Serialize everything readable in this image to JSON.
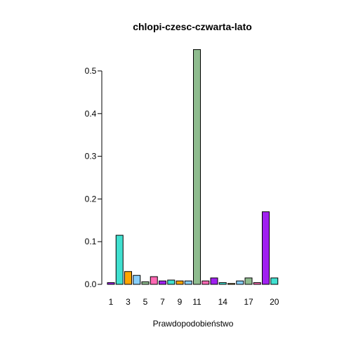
{
  "chart_data": {
    "type": "bar",
    "title": "chlopi-czesc-czwarta-lato",
    "xlabel": "Prawdopodobieństwo",
    "ylabel": "",
    "ylim": [
      0,
      0.55
    ],
    "yticks": [
      "0.0",
      "0.1",
      "0.2",
      "0.3",
      "0.4",
      "0.5"
    ],
    "ytick_values": [
      0,
      0.1,
      0.2,
      0.3,
      0.4,
      0.5
    ],
    "categories": [
      "1",
      "2",
      "3",
      "4",
      "5",
      "6",
      "7",
      "8",
      "9",
      "10",
      "11",
      "12",
      "13",
      "14",
      "15",
      "16",
      "17",
      "18",
      "19",
      "20"
    ],
    "xtick_labels": [
      "1",
      "",
      "3",
      "",
      "5",
      "",
      "7",
      "",
      "9",
      "",
      "11",
      "",
      "",
      "14",
      "",
      "",
      "17",
      "",
      "",
      "20"
    ],
    "values": [
      0.004,
      0.115,
      0.03,
      0.021,
      0.006,
      0.018,
      0.008,
      0.01,
      0.008,
      0.008,
      0.55,
      0.008,
      0.015,
      0.004,
      0.002,
      0.008,
      0.015,
      0.004,
      0.17,
      0.015
    ],
    "colors": [
      "#A020F0",
      "#40E0D0",
      "#FFA500",
      "#87CEFA",
      "#8FBC8F",
      "#FF69B4",
      "#A020F0",
      "#40E0D0",
      "#FFA500",
      "#87CEFA",
      "#8FBC8F",
      "#FF69B4",
      "#A020F0",
      "#40E0D0",
      "#FFA500",
      "#87CEFA",
      "#8FBC8F",
      "#FF69B4",
      "#A020F0",
      "#40E0D0"
    ],
    "grid": false,
    "legend": "none"
  }
}
